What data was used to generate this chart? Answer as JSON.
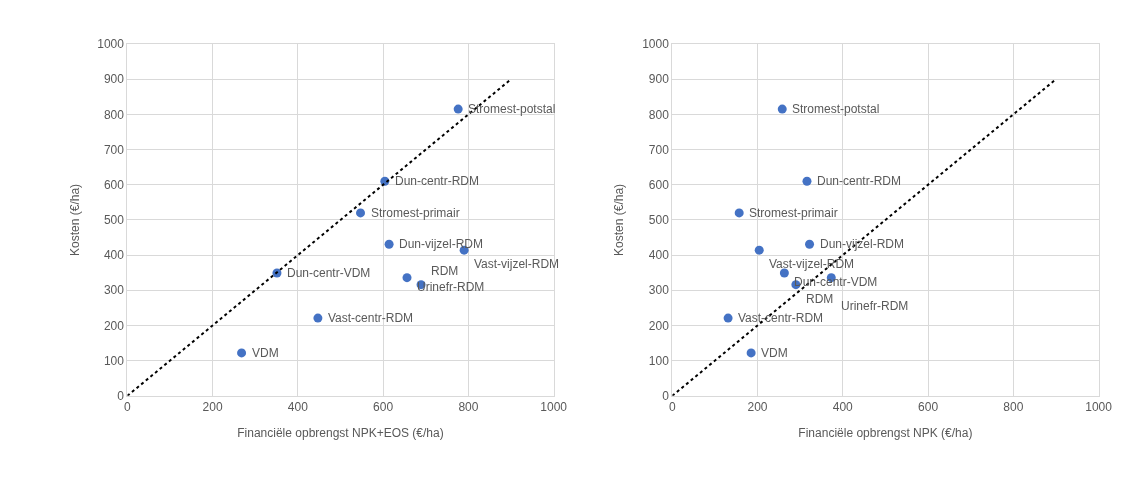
{
  "chart_data": [
    {
      "type": "scatter",
      "xlabel": "Financiële opbrengst NPK+EOS (€/ha)",
      "ylabel": "Kosten (€/ha)",
      "xlim": [
        0,
        1000
      ],
      "xticks": [
        0,
        200,
        400,
        600,
        800,
        1000
      ],
      "ylim": [
        0,
        1000
      ],
      "yticks": [
        0,
        100,
        200,
        300,
        400,
        500,
        600,
        700,
        800,
        900,
        1000
      ],
      "grid": true,
      "marker": "circle",
      "series": [
        {
          "color": "#4472c4",
          "x": [
            776,
            604,
            547,
            614,
            790,
            351,
            656,
            689,
            447,
            268
          ],
          "values": [
            815,
            610,
            520,
            431,
            414,
            349,
            336,
            316,
            221,
            122
          ]
        },
        {
          "type": "line",
          "color": "#000000",
          "line_style": "dotted",
          "marker": "none",
          "x": [
            0,
            900
          ],
          "values": [
            0,
            900
          ]
        }
      ],
      "annotations": [
        {
          "text": "Stromest-potstal",
          "x": 776,
          "y": 815
        },
        {
          "text": "Dun-centr-RDM",
          "x": 604,
          "y": 610
        },
        {
          "text": "Stromest-primair",
          "x": 547,
          "y": 520
        },
        {
          "text": "Dun-vijzel-RDM",
          "x": 614,
          "y": 431
        },
        {
          "text": "Vast-vijzel-RDM",
          "x": 790,
          "y": 414
        },
        {
          "text": "Dun-centr-VDM",
          "x": 351,
          "y": 349
        },
        {
          "text": "Urinefr-RDM",
          "x": 656,
          "y": 336
        },
        {
          "text": "RDM",
          "x": 689,
          "y": 316
        },
        {
          "text": "Vast-centr-RDM",
          "x": 447,
          "y": 221
        },
        {
          "text": "VDM",
          "x": 268,
          "y": 122
        }
      ]
    },
    {
      "type": "scatter",
      "xlabel": "Financiële opbrengst NPK (€/ha)",
      "ylabel": "Kosten (€/ha)",
      "xlim": [
        0,
        1000
      ],
      "xticks": [
        0,
        200,
        400,
        600,
        800,
        1000
      ],
      "ylim": [
        0,
        1000
      ],
      "yticks": [
        0,
        100,
        200,
        300,
        400,
        500,
        600,
        700,
        800,
        900,
        1000
      ],
      "grid": true,
      "marker": "circle",
      "series": [
        {
          "color": "#4472c4",
          "x": [
            258,
            316,
            157,
            322,
            204,
            263,
            373,
            290,
            131,
            185
          ],
          "values": [
            815,
            610,
            520,
            431,
            414,
            349,
            336,
            316,
            221,
            122
          ]
        },
        {
          "type": "line",
          "color": "#000000",
          "line_style": "dotted",
          "marker": "none",
          "x": [
            0,
            900
          ],
          "values": [
            0,
            900
          ]
        }
      ],
      "annotations": [
        {
          "text": "Stromest-potstal",
          "x": 258,
          "y": 815
        },
        {
          "text": "Dun-centr-RDM",
          "x": 316,
          "y": 610
        },
        {
          "text": "Stromest-primair",
          "x": 157,
          "y": 520
        },
        {
          "text": "Dun-vijzel-RDM",
          "x": 322,
          "y": 431
        },
        {
          "text": "Vast-vijzel-RDM",
          "x": 204,
          "y": 414
        },
        {
          "text": "Dun-centr-VDM",
          "x": 263,
          "y": 349
        },
        {
          "text": "Urinefr-RDM",
          "x": 373,
          "y": 336
        },
        {
          "text": "RDM",
          "x": 290,
          "y": 316
        },
        {
          "text": "Vast-centr-RDM",
          "x": 131,
          "y": 221
        },
        {
          "text": "VDM",
          "x": 185,
          "y": 122
        }
      ]
    }
  ]
}
